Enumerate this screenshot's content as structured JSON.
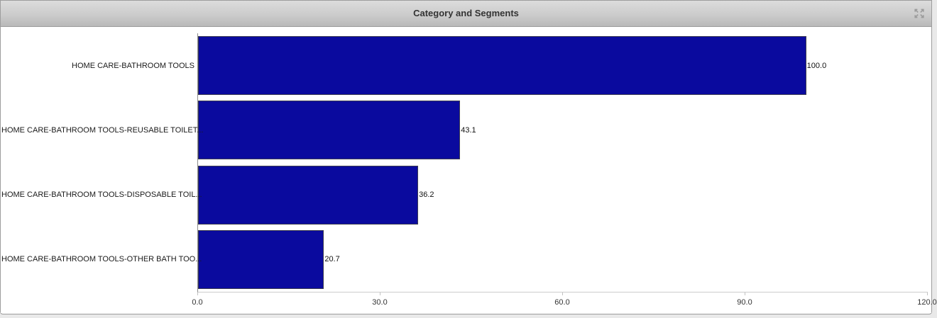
{
  "panel": {
    "title": "Category and Segments"
  },
  "icons": {
    "expand": "expand-arrows-icon",
    "expand_color": "#9b9b9b"
  },
  "chart_data": {
    "type": "bar",
    "orientation": "horizontal",
    "title": "Category and Segments",
    "categories": [
      "HOME CARE-BATHROOM TOOLS",
      "HOME CARE-BATHROOM TOOLS-REUSABLE TOILET...",
      "HOME CARE-BATHROOM TOOLS-DISPOSABLE TOIL...",
      "HOME CARE-BATHROOM TOOLS-OTHER BATH TOO..."
    ],
    "values": [
      100.0,
      43.1,
      36.2,
      20.7
    ],
    "value_labels": [
      "100.0",
      "43.1",
      "36.2",
      "20.7"
    ],
    "xlim": [
      0,
      120
    ],
    "xticks": [
      0,
      30,
      60,
      90,
      120
    ],
    "xtick_labels": [
      "0.0",
      "30.0",
      "60.0",
      "90.0",
      "120.0"
    ],
    "xlabel": "",
    "ylabel": "",
    "grid": false,
    "legend": "none",
    "bar_color": "#0a0a9e",
    "bar_border_color": "#3c3c50"
  }
}
